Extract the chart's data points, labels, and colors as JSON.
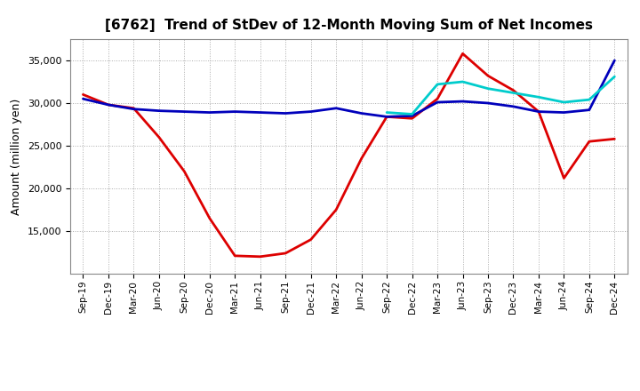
{
  "title": "[6762]  Trend of StDev of 12-Month Moving Sum of Net Incomes",
  "ylabel": "Amount (million yen)",
  "x_labels": [
    "Sep-19",
    "Dec-19",
    "Mar-20",
    "Jun-20",
    "Sep-20",
    "Dec-20",
    "Mar-21",
    "Jun-21",
    "Sep-21",
    "Dec-21",
    "Mar-22",
    "Jun-22",
    "Sep-22",
    "Dec-22",
    "Mar-23",
    "Jun-23",
    "Sep-23",
    "Dec-23",
    "Mar-24",
    "Jun-24",
    "Sep-24",
    "Dec-24"
  ],
  "series": {
    "3 Years": {
      "color": "#dd0000",
      "linewidth": 2.0,
      "values": [
        31000,
        29800,
        29400,
        26000,
        22000,
        16500,
        12100,
        12000,
        12400,
        14000,
        17500,
        23500,
        28400,
        28200,
        30500,
        35800,
        33200,
        31500,
        29000,
        21200,
        25500,
        25800
      ]
    },
    "5 Years": {
      "color": "#0000bb",
      "linewidth": 2.0,
      "values": [
        30500,
        29800,
        29300,
        29100,
        29000,
        28900,
        29000,
        28900,
        28800,
        29000,
        29400,
        28800,
        28400,
        28500,
        30100,
        30200,
        30000,
        29600,
        29000,
        28900,
        29200,
        35000
      ]
    },
    "7 Years": {
      "color": "#00cccc",
      "linewidth": 2.0,
      "values": [
        null,
        null,
        null,
        null,
        null,
        null,
        null,
        null,
        null,
        null,
        null,
        null,
        28900,
        28700,
        32200,
        32500,
        31700,
        31200,
        30700,
        30100,
        30400,
        33100
      ]
    },
    "10 Years": {
      "color": "#008800",
      "linewidth": 2.0,
      "values": [
        null,
        null,
        null,
        null,
        null,
        null,
        null,
        null,
        null,
        null,
        null,
        null,
        null,
        null,
        null,
        null,
        null,
        null,
        null,
        null,
        null,
        null
      ]
    }
  },
  "ylim": [
    10000,
    37500
  ],
  "yticks": [
    15000,
    20000,
    25000,
    30000,
    35000
  ],
  "background_color": "#ffffff",
  "grid_color": "#aaaaaa"
}
